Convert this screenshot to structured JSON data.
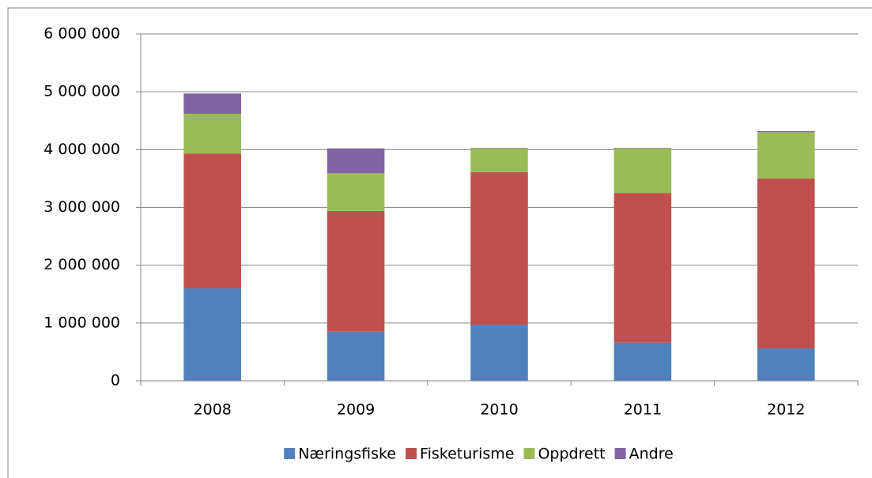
{
  "chart_data": {
    "type": "stacked_bar",
    "categories": [
      "2008",
      "2009",
      "2010",
      "2011",
      "2012"
    ],
    "series": [
      {
        "name": "Næringsfiske",
        "color": "#4f81bd",
        "values": [
          1600000,
          850000,
          970000,
          660000,
          560000
        ]
      },
      {
        "name": "Fisketurisme",
        "color": "#c0504d",
        "values": [
          2330000,
          2090000,
          2640000,
          2590000,
          2940000
        ]
      },
      {
        "name": "Oppdrett",
        "color": "#9bbb59",
        "values": [
          690000,
          650000,
          410000,
          770000,
          800000
        ]
      },
      {
        "name": "Andre",
        "color": "#8064a2",
        "values": [
          350000,
          430000,
          10000,
          10000,
          20000
        ]
      }
    ],
    "ylim": [
      0,
      6000000
    ],
    "yticks": [
      0,
      {
        "value": 1000000,
        "label": "1 000 000"
      },
      {
        "value": 2000000,
        "label": "2 000 000"
      },
      {
        "value": 3000000,
        "label": "3 000 000"
      },
      {
        "value": 4000000,
        "label": "4 000 000"
      },
      {
        "value": 5000000,
        "label": "5 000 000"
      },
      {
        "value": 6000000,
        "label": "6 000 000"
      }
    ],
    "grid": true,
    "legend": "bottom"
  }
}
